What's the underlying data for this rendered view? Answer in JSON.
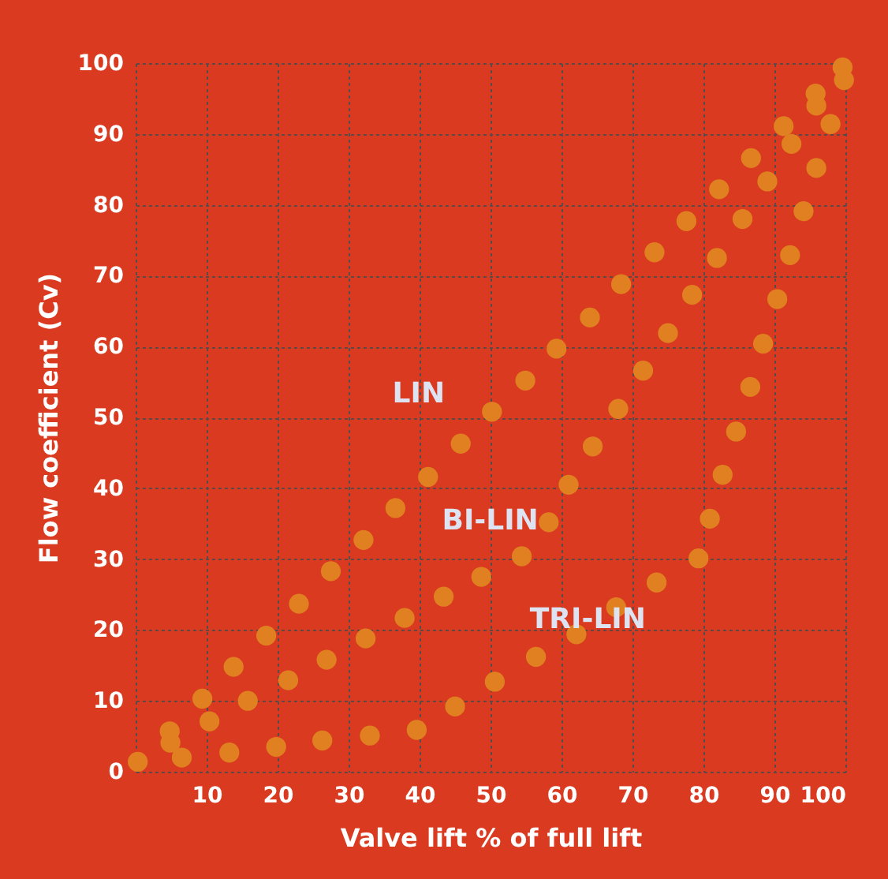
{
  "chart_data": {
    "type": "scatter",
    "xlabel": "Valve lift % of full lift",
    "ylabel": "Flow coefficient (Cv)",
    "xlim": [
      0,
      100
    ],
    "ylim": [
      0,
      100
    ],
    "xticks": [
      {
        "value": 0,
        "label": null
      },
      10,
      20,
      30,
      40,
      50,
      60,
      70,
      80,
      90,
      100
    ],
    "yticks": [
      0,
      10,
      20,
      30,
      40,
      50,
      60,
      70,
      80,
      90,
      100
    ],
    "grid": true,
    "legend": false,
    "marker": "circle",
    "series": [
      {
        "name": "LIN",
        "color": "#e08020",
        "x": [
          0.3,
          4.8,
          9.4,
          13.8,
          18.4,
          23.0,
          27.5,
          32.1,
          36.6,
          41.2,
          45.8,
          50.2,
          54.9,
          59.3,
          64.0,
          68.4,
          73.1,
          77.6,
          82.2,
          86.7,
          91.3,
          95.8,
          99.6
        ],
        "values": [
          1.4,
          5.7,
          10.3,
          14.8,
          19.2,
          23.7,
          28.3,
          32.7,
          37.2,
          41.6,
          46.3,
          50.8,
          55.2,
          59.7,
          64.1,
          68.8,
          73.3,
          77.7,
          82.2,
          86.6,
          91.1,
          95.7,
          99.4
        ]
      },
      {
        "name": "BI-LIN",
        "color": "#e08020",
        "x": [
          4.9,
          10.4,
          15.8,
          21.5,
          26.9,
          32.4,
          37.9,
          43.4,
          48.7,
          54.4,
          58.2,
          61.0,
          64.4,
          68.0,
          71.5,
          75.0,
          78.4,
          81.9,
          85.5,
          89.0,
          92.4,
          95.9,
          99.8
        ],
        "values": [
          4.1,
          7.1,
          10.0,
          12.9,
          15.8,
          18.8,
          21.7,
          24.7,
          27.5,
          30.4,
          35.2,
          40.5,
          45.9,
          51.2,
          56.6,
          61.9,
          67.3,
          72.5,
          78.0,
          83.3,
          88.6,
          94.0,
          97.6
        ]
      },
      {
        "name": "TRI-LIN",
        "color": "#e08020",
        "x": [
          6.5,
          13.2,
          19.8,
          26.3,
          33.0,
          39.6,
          45.0,
          50.6,
          56.4,
          62.1,
          67.7,
          73.4,
          79.3,
          80.9,
          82.7,
          84.6,
          86.6,
          88.4,
          90.4,
          92.2,
          94.1,
          95.9,
          97.9
        ],
        "values": [
          2.0,
          2.7,
          3.5,
          4.4,
          5.1,
          5.9,
          9.2,
          12.7,
          16.2,
          19.4,
          23.2,
          26.7,
          30.1,
          35.7,
          41.9,
          48.0,
          54.3,
          60.4,
          66.7,
          72.9,
          79.1,
          85.2,
          91.4
        ]
      }
    ]
  }
}
